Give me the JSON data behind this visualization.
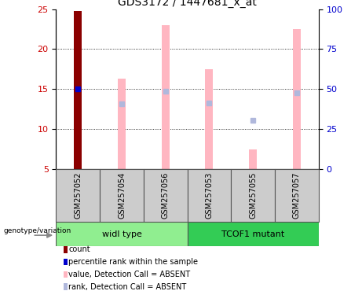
{
  "title": "GDS3172 / 1447681_x_at",
  "samples": [
    "GSM257052",
    "GSM257054",
    "GSM257056",
    "GSM257053",
    "GSM257055",
    "GSM257057"
  ],
  "groups": [
    "widl type",
    "TCOF1 mutant"
  ],
  "ylim_left": [
    5,
    25
  ],
  "ylim_right": [
    0,
    100
  ],
  "yticks_left": [
    5,
    10,
    15,
    20,
    25
  ],
  "yticks_right": [
    0,
    25,
    50,
    75,
    100
  ],
  "bar_values": [
    24.8,
    16.3,
    23.0,
    17.5,
    7.5,
    22.5
  ],
  "bar_bottom": 5,
  "bar_colors": [
    "#8b0000",
    "#ffb6c1",
    "#ffb6c1",
    "#ffb6c1",
    "#ffb6c1",
    "#ffb6c1"
  ],
  "rank_dots": [
    15.0,
    13.2,
    14.7,
    13.3,
    11.1,
    14.5
  ],
  "rank_dot_colors": [
    "#0000cd",
    "#b0b8dc",
    "#b0b8dc",
    "#b0b8dc",
    "#b0b8dc",
    "#b0b8dc"
  ],
  "bar_width": 0.18,
  "group1_color": "#90ee90",
  "group2_color": "#33cc55",
  "label_color_left": "#cc0000",
  "label_color_right": "#0000cd",
  "sample_box_color": "#cccccc",
  "legend_items": [
    {
      "label": "count",
      "color": "#8b0000"
    },
    {
      "label": "percentile rank within the sample",
      "color": "#0000cd"
    },
    {
      "label": "value, Detection Call = ABSENT",
      "color": "#ffb6c1"
    },
    {
      "label": "rank, Detection Call = ABSENT",
      "color": "#b0b8dc"
    }
  ]
}
